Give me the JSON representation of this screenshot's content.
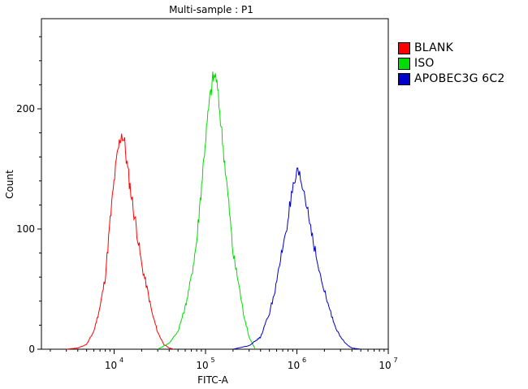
{
  "chart_data": {
    "type": "line",
    "title": "Multi-sample : P1",
    "xlabel": "FITC-A",
    "ylabel": "Count",
    "x_scale": "log",
    "xlim": [
      1600,
      10000000
    ],
    "ylim": [
      0,
      275
    ],
    "x_ticks": [
      {
        "base": "10",
        "exp": "4",
        "value": 10000
      },
      {
        "base": "10",
        "exp": "5",
        "value": 100000
      },
      {
        "base": "10",
        "exp": "6",
        "value": 1000000
      },
      {
        "base": "10",
        "exp": "7",
        "value": 10000000
      }
    ],
    "y_ticks": [
      0,
      100,
      200
    ],
    "legend_position": "right-top",
    "series": [
      {
        "name": "BLANK",
        "color": "#ff0000",
        "x": [
          3000,
          4000,
          5000,
          6000,
          7000,
          8000,
          9000,
          10000,
          11000,
          12000,
          13000,
          14000,
          16000,
          18000,
          20000,
          23000,
          26000,
          30000,
          35000,
          40000,
          45000
        ],
        "y": [
          0,
          1,
          4,
          15,
          35,
          60,
          105,
          140,
          165,
          180,
          172,
          150,
          120,
          95,
          70,
          50,
          30,
          14,
          4,
          1,
          0
        ]
      },
      {
        "name": "ISO",
        "color": "#00dd00",
        "x": [
          30000,
          40000,
          50000,
          60000,
          70000,
          80000,
          90000,
          100000,
          110000,
          120000,
          130000,
          140000,
          160000,
          180000,
          200000,
          230000,
          260000,
          300000,
          350000
        ],
        "y": [
          0,
          5,
          15,
          35,
          60,
          90,
          135,
          175,
          205,
          225,
          228,
          205,
          160,
          120,
          80,
          55,
          30,
          10,
          0
        ]
      },
      {
        "name": "APOBEC3G 6C2",
        "color": "#0000cc",
        "x": [
          200000,
          300000,
          400000,
          500000,
          600000,
          700000,
          800000,
          900000,
          1000000,
          1100000,
          1200000,
          1400000,
          1600000,
          1800000,
          2000000,
          2300000,
          2600000,
          3000000,
          3500000,
          4000000,
          5000000
        ],
        "y": [
          0,
          3,
          10,
          30,
          55,
          85,
          110,
          130,
          145,
          140,
          130,
          105,
          80,
          60,
          48,
          32,
          20,
          10,
          4,
          1,
          0
        ]
      }
    ]
  }
}
